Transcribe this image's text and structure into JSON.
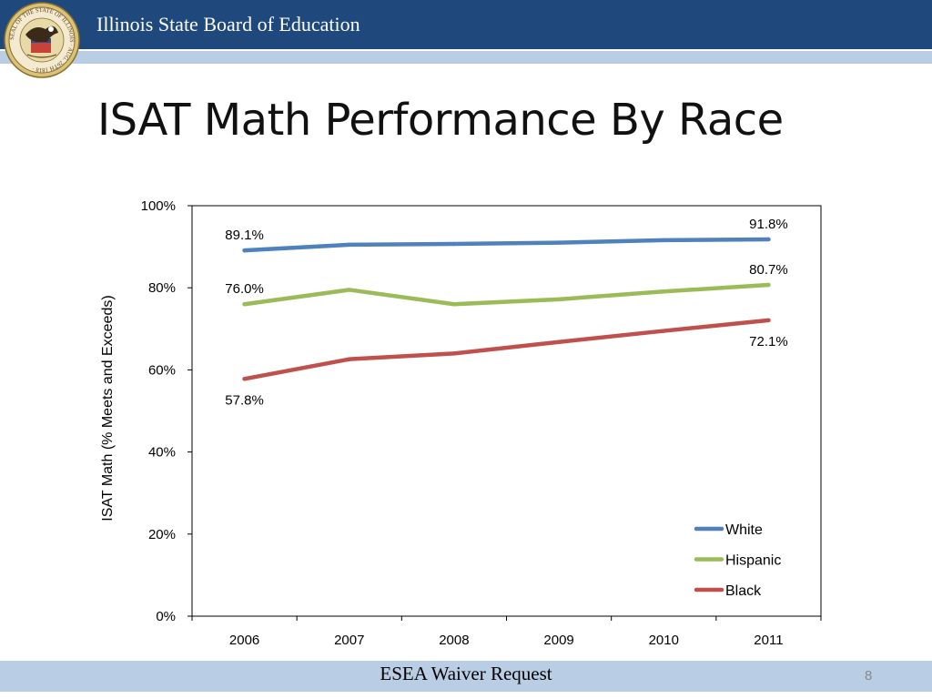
{
  "header": {
    "org_name": "Illinois State Board of Education",
    "seal_text": "SEAL OF THE STATE OF ILLINOIS · AUG. 26TH 1818 ·"
  },
  "slide": {
    "title": "ISAT Math Performance By Race"
  },
  "footer": {
    "text": "ESEA Waiver Request",
    "page_number": "8"
  },
  "colors": {
    "header_bar": "#1f497d",
    "stripe": "#b9cde5",
    "white_series": "#4f81bd",
    "hispanic_series": "#9bbb59",
    "black_series": "#c0504d"
  },
  "chart_data": {
    "type": "line",
    "x": [
      "2006",
      "2007",
      "2008",
      "2009",
      "2010",
      "2011"
    ],
    "ylabel": "ISAT Math (% Meets and Exceeds)",
    "xlabel": "",
    "ylim": [
      0,
      100
    ],
    "yticks": [
      "0%",
      "20%",
      "40%",
      "60%",
      "80%",
      "100%"
    ],
    "grid": false,
    "legend_position": "bottom-right",
    "series": [
      {
        "name": "White",
        "color": "#4f81bd",
        "values": [
          89.1,
          90.5,
          90.7,
          91.0,
          91.6,
          91.8
        ],
        "labels": [
          {
            "index": 0,
            "text": "89.1%",
            "pos": "above"
          },
          {
            "index": 5,
            "text": "91.8%",
            "pos": "above"
          }
        ]
      },
      {
        "name": "Hispanic",
        "color": "#9bbb59",
        "values": [
          76.0,
          79.5,
          76.0,
          77.2,
          79.1,
          80.7
        ],
        "labels": [
          {
            "index": 0,
            "text": "76.0%",
            "pos": "above"
          },
          {
            "index": 5,
            "text": "80.7%",
            "pos": "above"
          }
        ]
      },
      {
        "name": "Black",
        "color": "#c0504d",
        "values": [
          57.8,
          62.6,
          64.0,
          66.8,
          69.5,
          72.1
        ],
        "labels": [
          {
            "index": 0,
            "text": "57.8%",
            "pos": "below"
          },
          {
            "index": 5,
            "text": "72.1%",
            "pos": "below"
          }
        ]
      }
    ]
  }
}
